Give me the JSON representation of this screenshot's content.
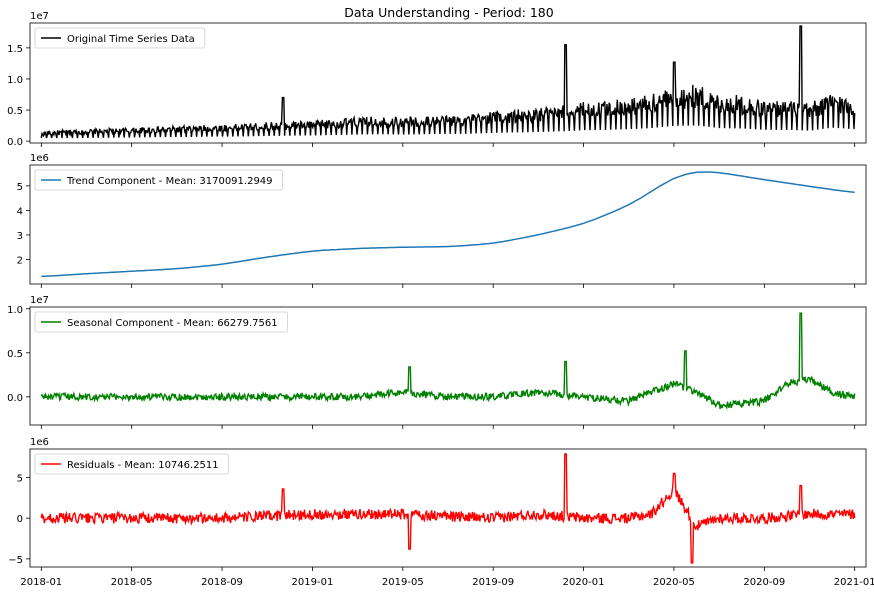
{
  "title": "Data Understanding - Period: 180",
  "x_tick_labels": [
    "2018-01",
    "2018-05",
    "2018-09",
    "2019-01",
    "2019-05",
    "2019-09",
    "2020-01",
    "2020-05",
    "2020-09",
    "2021-01"
  ],
  "chart_data": [
    {
      "type": "line",
      "legend": "Original Time Series Data",
      "legend_placement": "upper-left",
      "color": "#000000",
      "y_multiplier": "1e7",
      "ylim": [
        -0.03,
        1.9
      ],
      "yticks": [
        0.0,
        0.5,
        1.0,
        1.5
      ],
      "ytick_labels": [
        "0.0",
        "0.5",
        "1.0",
        "1.5"
      ],
      "xlim": [
        -0.5,
        36.5
      ],
      "x": [
        0,
        1,
        2,
        3,
        4,
        5,
        6,
        7,
        8,
        9,
        10,
        11,
        12,
        13,
        14,
        15,
        16,
        17,
        18,
        19,
        20,
        21,
        22,
        23,
        24,
        25,
        26,
        27,
        28,
        29,
        30,
        31,
        32,
        33,
        34,
        35,
        36
      ],
      "y": [
        0.12,
        0.14,
        0.15,
        0.16,
        0.17,
        0.18,
        0.19,
        0.2,
        0.21,
        0.22,
        0.24,
        0.25,
        0.26,
        0.28,
        0.3,
        0.32,
        0.3,
        0.32,
        0.33,
        0.34,
        0.38,
        0.4,
        0.42,
        0.45,
        0.5,
        0.52,
        0.55,
        0.6,
        0.7,
        0.72,
        0.6,
        0.58,
        0.52,
        0.52,
        0.48,
        0.62,
        0.55
      ],
      "spikes": [
        {
          "x": 10.7,
          "y": 0.7
        },
        {
          "x": 23.2,
          "y": 1.55
        },
        {
          "x": 28.0,
          "y": 1.27
        },
        {
          "x": 33.6,
          "y": 1.85
        }
      ],
      "noise_amplitude": 0.45
    },
    {
      "type": "line",
      "legend": "Trend Component - Mean:  3170091.2949",
      "legend_placement": "upper-left",
      "color": "#1f77b4",
      "y_multiplier": "1e6",
      "ylim": [
        1.0,
        5.85
      ],
      "yticks": [
        2,
        3,
        4,
        5
      ],
      "ytick_labels": [
        "2",
        "3",
        "4",
        "5"
      ],
      "xlim": [
        -0.5,
        36.5
      ],
      "x": [
        0,
        2,
        4,
        6,
        8,
        10,
        12,
        14,
        16,
        18,
        20,
        22,
        24,
        26,
        28,
        29,
        30,
        32,
        34,
        36
      ],
      "y": [
        1.3,
        1.42,
        1.52,
        1.62,
        1.8,
        2.1,
        2.35,
        2.45,
        2.5,
        2.52,
        2.65,
        3.0,
        3.45,
        4.2,
        5.35,
        5.6,
        5.55,
        5.25,
        4.98,
        4.72
      ]
    },
    {
      "type": "line",
      "legend": "Seasonal Component - Mean:  66279.7561",
      "legend_placement": "upper-left",
      "color": "#008000",
      "y_multiplier": "1e7",
      "ylim": [
        -0.32,
        1.02
      ],
      "yticks": [
        0.0,
        0.5,
        1.0
      ],
      "ytick_labels": [
        "0.0",
        "0.5",
        "1.0"
      ],
      "xlim": [
        -0.5,
        36.5
      ],
      "x": [
        0,
        2,
        4,
        6,
        8,
        10,
        12,
        14,
        16,
        18,
        20,
        22,
        24,
        26,
        28,
        29,
        30,
        32,
        33,
        34,
        35,
        36
      ],
      "y": [
        0.0,
        0.0,
        0.0,
        0.0,
        0.0,
        0.0,
        0.0,
        0.0,
        0.05,
        0.0,
        0.0,
        0.05,
        0.0,
        -0.05,
        0.15,
        0.05,
        -0.1,
        -0.05,
        0.15,
        0.2,
        0.05,
        0.0
      ],
      "spikes": [
        {
          "x": 16.3,
          "y": 0.34
        },
        {
          "x": 23.2,
          "y": 0.4
        },
        {
          "x": 28.5,
          "y": 0.52
        },
        {
          "x": 33.6,
          "y": 0.95
        }
      ],
      "noise_amplitude": 0.08
    },
    {
      "type": "line",
      "legend": "Residuals - Mean:  10746.2511",
      "legend_placement": "upper-left",
      "color": "#ff0000",
      "y_multiplier": "1e6",
      "ylim": [
        -6.0,
        8.5
      ],
      "yticks": [
        -5,
        0,
        5
      ],
      "ytick_labels": [
        "−5",
        "0",
        "5"
      ],
      "xlim": [
        -0.5,
        36.5
      ],
      "x": [
        0,
        4,
        8,
        12,
        16,
        20,
        22,
        24,
        26,
        27,
        28,
        29,
        30,
        32,
        34,
        36
      ],
      "y": [
        0.0,
        0.0,
        0.0,
        0.5,
        0.5,
        0.0,
        0.5,
        0.0,
        0.0,
        0.5,
        3.5,
        -1.0,
        0.0,
        0.0,
        0.5,
        0.5
      ],
      "spikes": [
        {
          "x": 10.7,
          "y": 3.6
        },
        {
          "x": 23.2,
          "y": 7.9
        },
        {
          "x": 28.0,
          "y": 5.5
        },
        {
          "x": 28.8,
          "y": -5.5
        },
        {
          "x": 33.6,
          "y": 4.0
        },
        {
          "x": 16.3,
          "y": -3.8
        }
      ],
      "noise_amplitude": 1.3
    }
  ]
}
